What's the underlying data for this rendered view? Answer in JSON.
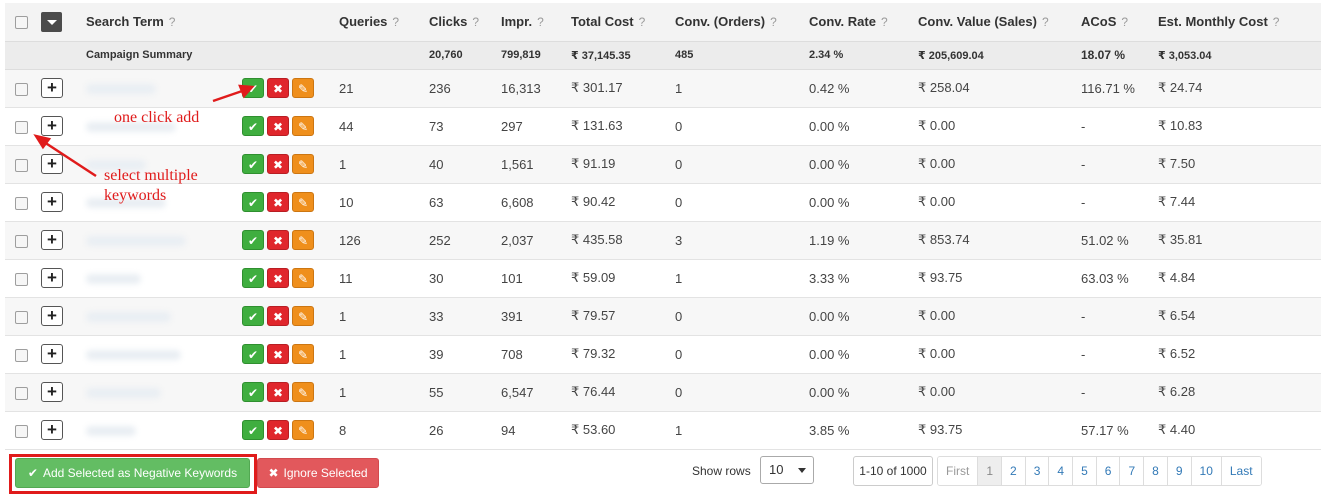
{
  "table": {
    "headers": {
      "search_term": "Search Term",
      "queries": "Queries",
      "clicks": "Clicks",
      "impr": "Impr.",
      "total_cost": "Total Cost",
      "conv_orders": "Conv. (Orders)",
      "conv_rate": "Conv. Rate",
      "conv_value": "Conv. Value (Sales)",
      "acos": "ACoS",
      "est_monthly_cost": "Est. Monthly Cost",
      "help_glyph": "?"
    },
    "summary": {
      "label": "Campaign Summary",
      "clicks": "20,760",
      "impr": "799,819",
      "total_cost": "₹ 37,145.35",
      "conv_orders": "485",
      "conv_rate": "2.34 %",
      "conv_value": "₹ 205,609.04",
      "acos": "18.07 %",
      "est_monthly_cost": "₹ 3,053.04"
    },
    "rows": [
      {
        "queries": "21",
        "clicks": "236",
        "impr": "16,313",
        "total_cost": "₹ 301.17",
        "conv_orders": "1",
        "conv_rate": "0.42 %",
        "conv_value": "₹ 258.04",
        "acos": "116.71 %",
        "est_monthly_cost": "₹ 24.74"
      },
      {
        "queries": "44",
        "clicks": "73",
        "impr": "297",
        "total_cost": "₹ 131.63",
        "conv_orders": "0",
        "conv_rate": "0.00 %",
        "conv_value": "₹ 0.00",
        "acos": "-",
        "est_monthly_cost": "₹ 10.83"
      },
      {
        "queries": "1",
        "clicks": "40",
        "impr": "1,561",
        "total_cost": "₹ 91.19",
        "conv_orders": "0",
        "conv_rate": "0.00 %",
        "conv_value": "₹ 0.00",
        "acos": "-",
        "est_monthly_cost": "₹ 7.50"
      },
      {
        "queries": "10",
        "clicks": "63",
        "impr": "6,608",
        "total_cost": "₹ 90.42",
        "conv_orders": "0",
        "conv_rate": "0.00 %",
        "conv_value": "₹ 0.00",
        "acos": "-",
        "est_monthly_cost": "₹ 7.44"
      },
      {
        "queries": "126",
        "clicks": "252",
        "impr": "2,037",
        "total_cost": "₹ 435.58",
        "conv_orders": "3",
        "conv_rate": "1.19 %",
        "conv_value": "₹ 853.74",
        "acos": "51.02 %",
        "est_monthly_cost": "₹ 35.81"
      },
      {
        "queries": "11",
        "clicks": "30",
        "impr": "101",
        "total_cost": "₹ 59.09",
        "conv_orders": "1",
        "conv_rate": "3.33 %",
        "conv_value": "₹ 93.75",
        "acos": "63.03 %",
        "est_monthly_cost": "₹ 4.84"
      },
      {
        "queries": "1",
        "clicks": "33",
        "impr": "391",
        "total_cost": "₹ 79.57",
        "conv_orders": "0",
        "conv_rate": "0.00 %",
        "conv_value": "₹ 0.00",
        "acos": "-",
        "est_monthly_cost": "₹ 6.54"
      },
      {
        "queries": "1",
        "clicks": "39",
        "impr": "708",
        "total_cost": "₹ 79.32",
        "conv_orders": "0",
        "conv_rate": "0.00 %",
        "conv_value": "₹ 0.00",
        "acos": "-",
        "est_monthly_cost": "₹ 6.52"
      },
      {
        "queries": "1",
        "clicks": "55",
        "impr": "6,547",
        "total_cost": "₹ 76.44",
        "conv_orders": "0",
        "conv_rate": "0.00 %",
        "conv_value": "₹ 0.00",
        "acos": "-",
        "est_monthly_cost": "₹ 6.28"
      },
      {
        "queries": "8",
        "clicks": "26",
        "impr": "94",
        "total_cost": "₹ 53.60",
        "conv_orders": "1",
        "conv_rate": "3.85 %",
        "conv_value": "₹ 93.75",
        "acos": "57.17 %",
        "est_monthly_cost": "₹ 4.40"
      }
    ],
    "row_icons": {
      "expand": "plus-icon",
      "add_negative": "check-icon",
      "ignore": "x-icon",
      "edit": "pencil-icon"
    }
  },
  "annotations": {
    "one_click_add": "one click add",
    "select_multiple": "select multiple\nkeywords"
  },
  "footer": {
    "add_selected_label": "Add Selected as Negative Keywords",
    "ignore_selected_label": "Ignore Selected",
    "show_rows_label": "Show rows",
    "rows_per_page": "10",
    "range_text": "1-10 of 1000",
    "pagination": {
      "first": "First",
      "pages": [
        "1",
        "2",
        "3",
        "4",
        "5",
        "6",
        "7",
        "8",
        "9",
        "10"
      ],
      "current": "1",
      "last": "Last"
    }
  },
  "colors": {
    "accept_green": "#3fae3f",
    "reject_red": "#e0262c",
    "edit_orange": "#ef8f1c",
    "annotation_red": "#e01b1b",
    "add_button_green": "#63bd63",
    "ignore_button_red": "#e2585c",
    "link_blue": "#337ab7"
  }
}
